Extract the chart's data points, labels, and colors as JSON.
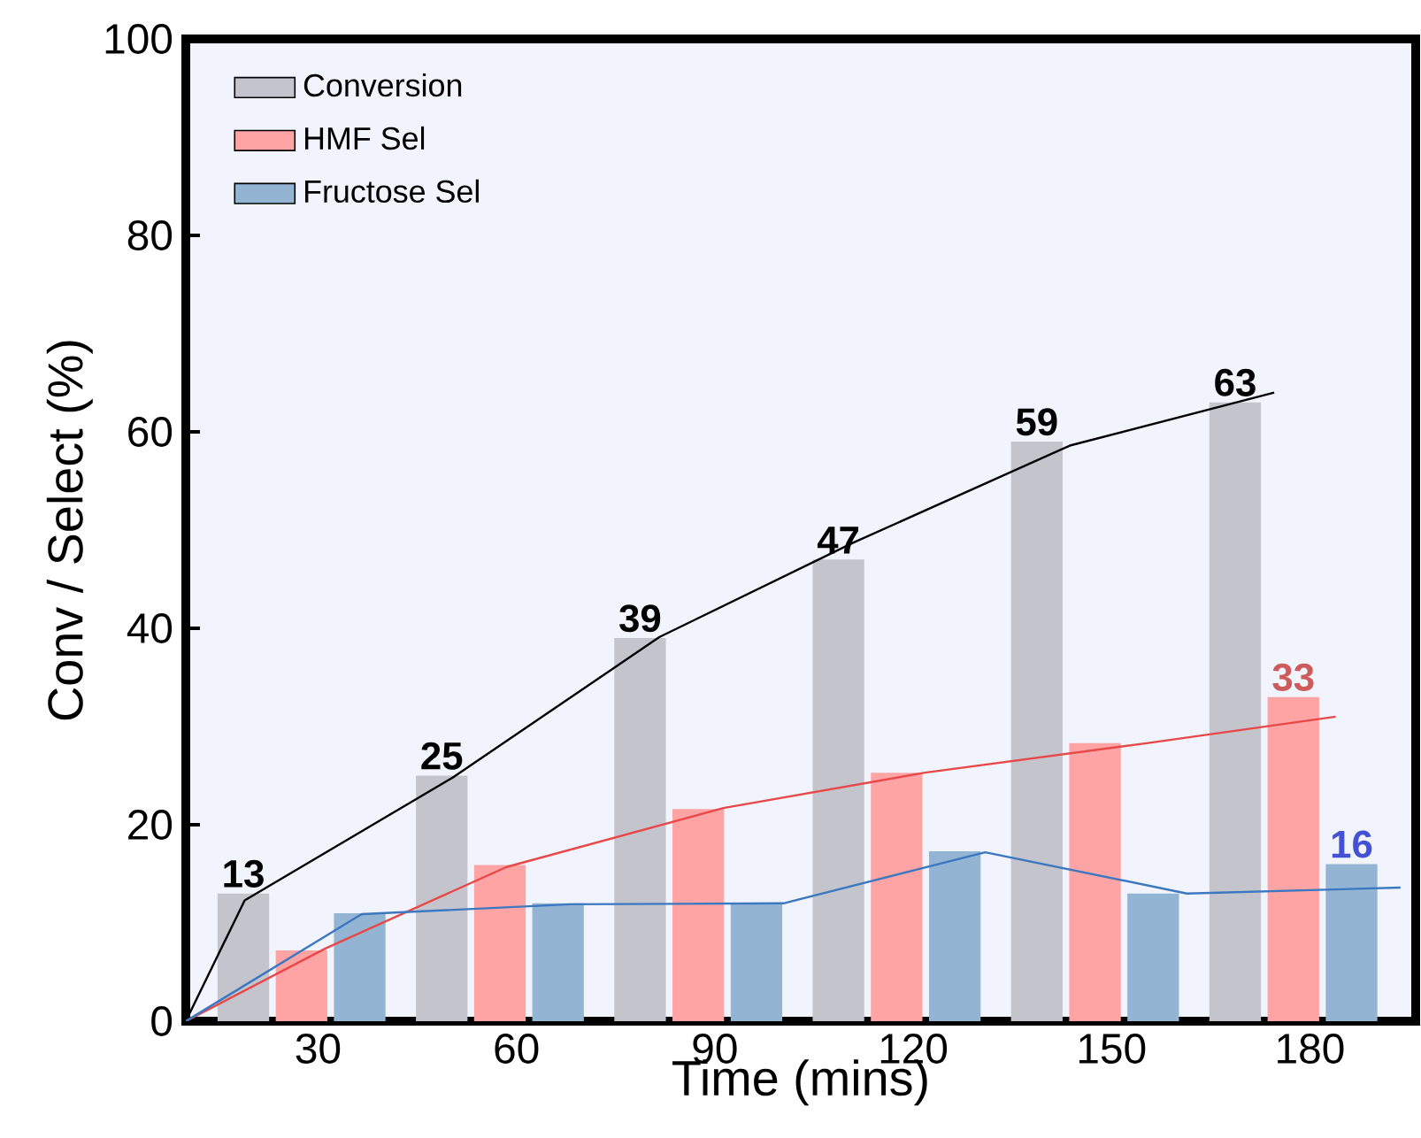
{
  "chart_data": {
    "type": "bar",
    "xlabel": "Time (mins)",
    "ylabel": "Conv / Select (%)",
    "x": [
      30,
      60,
      90,
      120,
      150,
      180
    ],
    "xlim": [
      10,
      196
    ],
    "xticks": [
      30,
      60,
      90,
      120,
      150,
      180
    ],
    "ylim": [
      0,
      100
    ],
    "yticks": [
      0,
      20,
      40,
      60,
      80,
      100
    ],
    "legend": "top left",
    "grid": false,
    "series": [
      {
        "name": "Conversion",
        "color": "#c4c4cc",
        "values": [
          13,
          25,
          39,
          47,
          59,
          63
        ],
        "value_labels": [
          "13",
          "25",
          "39",
          "47",
          "59",
          "63"
        ]
      },
      {
        "name": "HMF Sel",
        "color": "#ffa4a4",
        "values": [
          7.2,
          15.9,
          21.6,
          25.3,
          28.3,
          33
        ],
        "value_labels": [
          null,
          null,
          null,
          null,
          null,
          "33"
        ]
      },
      {
        "name": "Fructose Sel",
        "color": "#94b4d4",
        "values": [
          11.0,
          12.0,
          12.0,
          17.3,
          13.0,
          16
        ],
        "value_labels": [
          null,
          null,
          null,
          null,
          null,
          "16"
        ]
      },
      {
        "type": "line",
        "color": "#000000",
        "x": [
          10,
          18.9,
          50.6,
          81.6,
          110.9,
          143.7,
          174.6
        ],
        "values": [
          0,
          12.3,
          24.9,
          39.1,
          48.7,
          58.6,
          64
        ]
      },
      {
        "type": "line",
        "color": "#e84848",
        "x": [
          10,
          31.1,
          58.5,
          91.3,
          121.8,
          155.3,
          183.9
        ],
        "values": [
          0,
          7.4,
          15.7,
          21.7,
          25.3,
          28.3,
          31.0
        ]
      },
      {
        "type": "line",
        "color": "#3c78c0",
        "x": [
          10,
          36.6,
          68.2,
          100.4,
          130.9,
          161.4,
          193.7
        ],
        "values": [
          0,
          10.9,
          11.9,
          12.0,
          17.2,
          13.0,
          13.6
        ]
      }
    ]
  }
}
